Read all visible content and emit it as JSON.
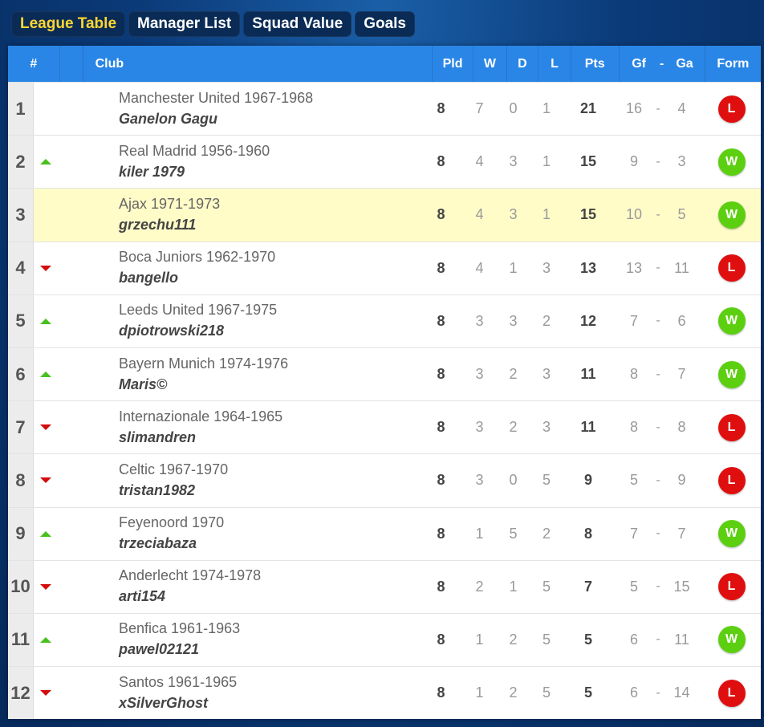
{
  "tabs": [
    {
      "label": "League Table",
      "active": true
    },
    {
      "label": "Manager List",
      "active": false
    },
    {
      "label": "Squad Value",
      "active": false
    },
    {
      "label": "Goals",
      "active": false
    }
  ],
  "table": {
    "headers": {
      "pos": "#",
      "club": "Club",
      "pld": "Pld",
      "w": "W",
      "d": "D",
      "l": "L",
      "pts": "Pts",
      "gf": "Gf",
      "sep": "-",
      "ga": "Ga",
      "form": "Form"
    },
    "rows": [
      {
        "pos": "1",
        "move": "none",
        "club": "Manchester United 1967-1968",
        "manager": "Ganelon Gagu",
        "pld": "8",
        "w": "7",
        "d": "0",
        "l": "1",
        "pts": "21",
        "gf": "16",
        "ga": "4",
        "form": "L",
        "highlight": false
      },
      {
        "pos": "2",
        "move": "up",
        "club": "Real Madrid 1956-1960",
        "manager": "kiler 1979",
        "pld": "8",
        "w": "4",
        "d": "3",
        "l": "1",
        "pts": "15",
        "gf": "9",
        "ga": "3",
        "form": "W",
        "highlight": false
      },
      {
        "pos": "3",
        "move": "none",
        "club": "Ajax 1971-1973",
        "manager": "grzechu111",
        "pld": "8",
        "w": "4",
        "d": "3",
        "l": "1",
        "pts": "15",
        "gf": "10",
        "ga": "5",
        "form": "W",
        "highlight": true
      },
      {
        "pos": "4",
        "move": "down",
        "club": "Boca Juniors 1962-1970",
        "manager": "bangello",
        "pld": "8",
        "w": "4",
        "d": "1",
        "l": "3",
        "pts": "13",
        "gf": "13",
        "ga": "11",
        "form": "L",
        "highlight": false
      },
      {
        "pos": "5",
        "move": "up",
        "club": "Leeds United 1967-1975",
        "manager": "dpiotrowski218",
        "pld": "8",
        "w": "3",
        "d": "3",
        "l": "2",
        "pts": "12",
        "gf": "7",
        "ga": "6",
        "form": "W",
        "highlight": false
      },
      {
        "pos": "6",
        "move": "up",
        "club": "Bayern Munich 1974-1976",
        "manager": "Maris©",
        "pld": "8",
        "w": "3",
        "d": "2",
        "l": "3",
        "pts": "11",
        "gf": "8",
        "ga": "7",
        "form": "W",
        "highlight": false
      },
      {
        "pos": "7",
        "move": "down",
        "club": "Internazionale 1964-1965",
        "manager": "slimandren",
        "pld": "8",
        "w": "3",
        "d": "2",
        "l": "3",
        "pts": "11",
        "gf": "8",
        "ga": "8",
        "form": "L",
        "highlight": false
      },
      {
        "pos": "8",
        "move": "down",
        "club": "Celtic 1967-1970",
        "manager": "tristan1982",
        "pld": "8",
        "w": "3",
        "d": "0",
        "l": "5",
        "pts": "9",
        "gf": "5",
        "ga": "9",
        "form": "L",
        "highlight": false
      },
      {
        "pos": "9",
        "move": "up",
        "club": "Feyenoord 1970",
        "manager": "trzeciabaza",
        "pld": "8",
        "w": "1",
        "d": "5",
        "l": "2",
        "pts": "8",
        "gf": "7",
        "ga": "7",
        "form": "W",
        "highlight": false
      },
      {
        "pos": "10",
        "move": "down",
        "club": "Anderlecht 1974-1978",
        "manager": "arti154",
        "pld": "8",
        "w": "2",
        "d": "1",
        "l": "5",
        "pts": "7",
        "gf": "5",
        "ga": "15",
        "form": "L",
        "highlight": false
      },
      {
        "pos": "11",
        "move": "up",
        "club": "Benfica 1961-1963",
        "manager": "pawel02121",
        "pld": "8",
        "w": "1",
        "d": "2",
        "l": "5",
        "pts": "5",
        "gf": "6",
        "ga": "11",
        "form": "W",
        "highlight": false
      },
      {
        "pos": "12",
        "move": "down",
        "club": "Santos 1961-1965",
        "manager": "xSilverGhost",
        "pld": "8",
        "w": "1",
        "d": "2",
        "l": "5",
        "pts": "5",
        "gf": "6",
        "ga": "14",
        "form": "L",
        "highlight": false
      }
    ]
  },
  "colors": {
    "header": "#2a86e6",
    "up": "#48c01c",
    "down": "#d40c0c",
    "win": "#5cd010",
    "loss": "#e00f0f",
    "highlight": "#fffcc8",
    "active_tab": "#ffd633"
  }
}
